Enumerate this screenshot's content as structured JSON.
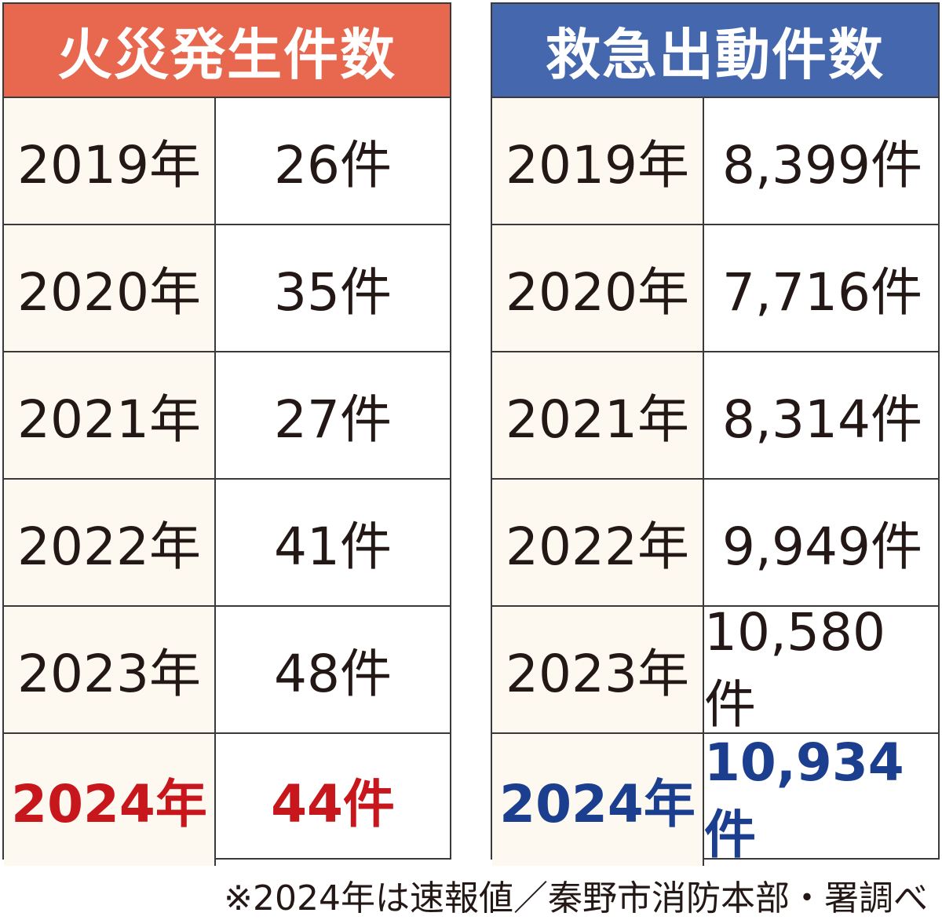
{
  "tables": [
    {
      "title": "火災発生件数",
      "rows": [
        [
          "2019年",
          "26件"
        ],
        [
          "2020年",
          "35件"
        ],
        [
          "2021年",
          "27件"
        ],
        [
          "2022年",
          "41件"
        ],
        [
          "2023年",
          "48件"
        ],
        [
          "2024年",
          "44件"
        ]
      ]
    },
    {
      "title": "救急出動件数",
      "rows": [
        [
          "2019年",
          "8,399件"
        ],
        [
          "2020年",
          "7,716件"
        ],
        [
          "2021年",
          "8,314件"
        ],
        [
          "2022年",
          "9,949件"
        ],
        [
          "2023年",
          "10,580件"
        ],
        [
          "2024年",
          "10,934件"
        ]
      ]
    }
  ],
  "footnote": "※2024年は速報値／秦野市消防本部・署調べ"
}
